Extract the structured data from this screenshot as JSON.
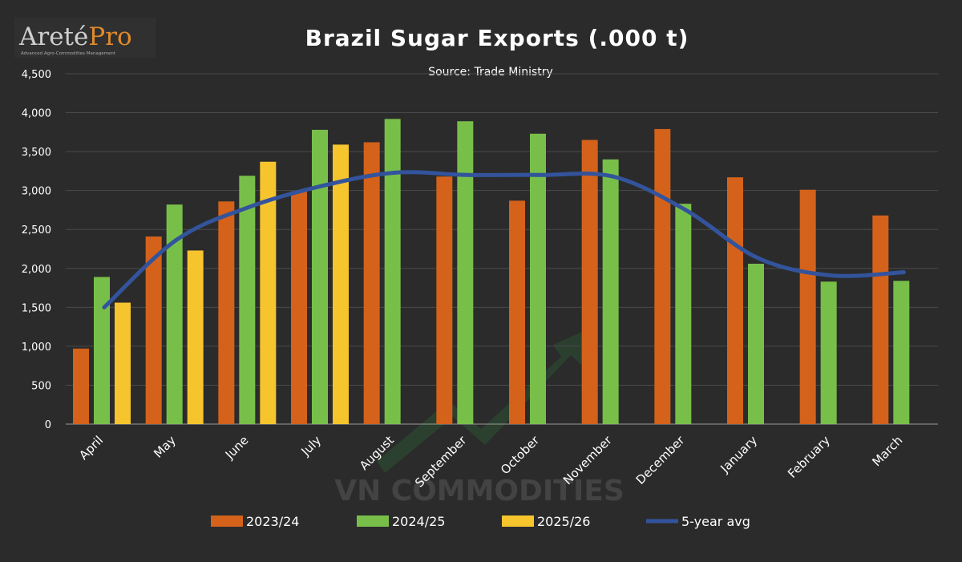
{
  "logo": {
    "brand_main": "Areté",
    "brand_accent": "Pro",
    "tagline": "Advanced Agro-Commodities Management"
  },
  "watermark": {
    "text": "VN COMMODITIES"
  },
  "colors": {
    "background": "#2b2b2b",
    "series_2023": "#d4621a",
    "series_2024": "#78bf4a",
    "series_2025": "#f6c52e",
    "avg_line": "#33549c",
    "gridline": "#4a4a4a",
    "text": "#ffffff"
  },
  "chart_data": {
    "type": "bar",
    "title": "Brazil Sugar Exports (.000 t)",
    "subtitle": "Source: Trade Ministry",
    "xlabel": "",
    "ylabel": "",
    "ylim": [
      0,
      4500
    ],
    "yticks": [
      0,
      500,
      1000,
      1500,
      2000,
      2500,
      3000,
      3500,
      4000,
      4500
    ],
    "ytick_labels": [
      "0",
      "500",
      "1,000",
      "1,500",
      "2,000",
      "2,500",
      "3,000",
      "3,500",
      "4,000",
      "4,500"
    ],
    "grid": true,
    "legend_position": "bottom",
    "categories": [
      "April",
      "May",
      "June",
      "July",
      "August",
      "September",
      "October",
      "November",
      "December",
      "January",
      "February",
      "March"
    ],
    "series": [
      {
        "name": "2023/24",
        "type": "bar",
        "color_key": "series_2023",
        "values": [
          970,
          2410,
          2860,
          2990,
          3620,
          3180,
          2870,
          3650,
          3790,
          3170,
          3010,
          2680
        ]
      },
      {
        "name": "2024/25",
        "type": "bar",
        "color_key": "series_2024",
        "values": [
          1890,
          2820,
          3190,
          3780,
          3920,
          3890,
          3730,
          3400,
          2830,
          2060,
          1830,
          1840
        ]
      },
      {
        "name": "2025/26",
        "type": "bar",
        "color_key": "series_2025",
        "values": [
          1560,
          2230,
          3370,
          3590,
          null,
          null,
          null,
          null,
          null,
          null,
          null,
          null
        ]
      },
      {
        "name": "5-year avg",
        "type": "line",
        "color_key": "avg_line",
        "values": [
          1500,
          2370,
          2790,
          3060,
          3230,
          3200,
          3200,
          3180,
          2750,
          2130,
          1910,
          1950
        ]
      }
    ]
  }
}
